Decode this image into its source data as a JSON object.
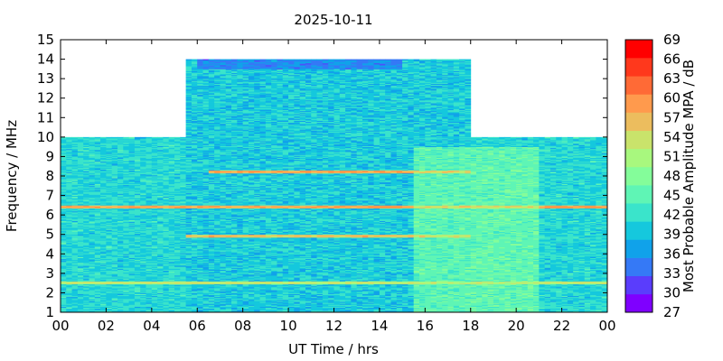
{
  "chart_data": {
    "type": "heatmap",
    "title": "2025-10-11",
    "xlabel": "UT Time / hrs",
    "ylabel": "Frequency / MHz",
    "colorbar_label": "Most Probable Amplitude MPA / dB",
    "xlim": [
      0,
      24
    ],
    "ylim": [
      1,
      15
    ],
    "x_ticks": [
      "00",
      "02",
      "04",
      "06",
      "08",
      "10",
      "12",
      "14",
      "16",
      "18",
      "20",
      "22",
      "00"
    ],
    "y_ticks": [
      "1",
      "2",
      "3",
      "4",
      "5",
      "6",
      "7",
      "8",
      "9",
      "10",
      "11",
      "12",
      "13",
      "14",
      "15"
    ],
    "colorbar_ticks": [
      "27",
      "30",
      "33",
      "36",
      "39",
      "42",
      "45",
      "48",
      "51",
      "54",
      "57",
      "60",
      "63",
      "66",
      "69"
    ],
    "colorbar_range": [
      27,
      69
    ],
    "colorbar_colors": [
      "#7f00ff",
      "#5a3dfc",
      "#3579f6",
      "#10a2ea",
      "#15c8dd",
      "#3ae4cb",
      "#5ff5b5",
      "#84fd9a",
      "#a8f87e",
      "#c9e36b",
      "#ecbd5e",
      "#ff9a4d",
      "#ff6a36",
      "#ff381c",
      "#ff0000"
    ],
    "coverage": [
      {
        "x_range": [
          0,
          5.5
        ],
        "y_range": [
          1,
          10
        ],
        "typical_db": 41
      },
      {
        "x_range": [
          5.5,
          18
        ],
        "y_range": [
          1,
          14
        ],
        "typical_db": 40
      },
      {
        "x_range": [
          18,
          24
        ],
        "y_range": [
          1,
          10
        ],
        "typical_db": 41
      }
    ],
    "features": [
      {
        "label": "strong band",
        "y": 6.4,
        "x_range": [
          0,
          24
        ],
        "db": 58
      },
      {
        "label": "strong band",
        "y": 8.2,
        "x_range": [
          6.5,
          18
        ],
        "db": 58
      },
      {
        "label": "strong band",
        "y": 4.9,
        "x_range": [
          5.5,
          18
        ],
        "db": 56
      },
      {
        "label": "strong band",
        "y": 2.5,
        "x_range": [
          0,
          24
        ],
        "db": 53
      },
      {
        "label": "enhanced region",
        "x_range": [
          15.5,
          21
        ],
        "y_range": [
          1,
          9.5
        ],
        "db": 50
      },
      {
        "label": "weak region",
        "x_range": [
          6,
          15
        ],
        "y_range": [
          13.5,
          14
        ],
        "db": 30
      }
    ]
  }
}
